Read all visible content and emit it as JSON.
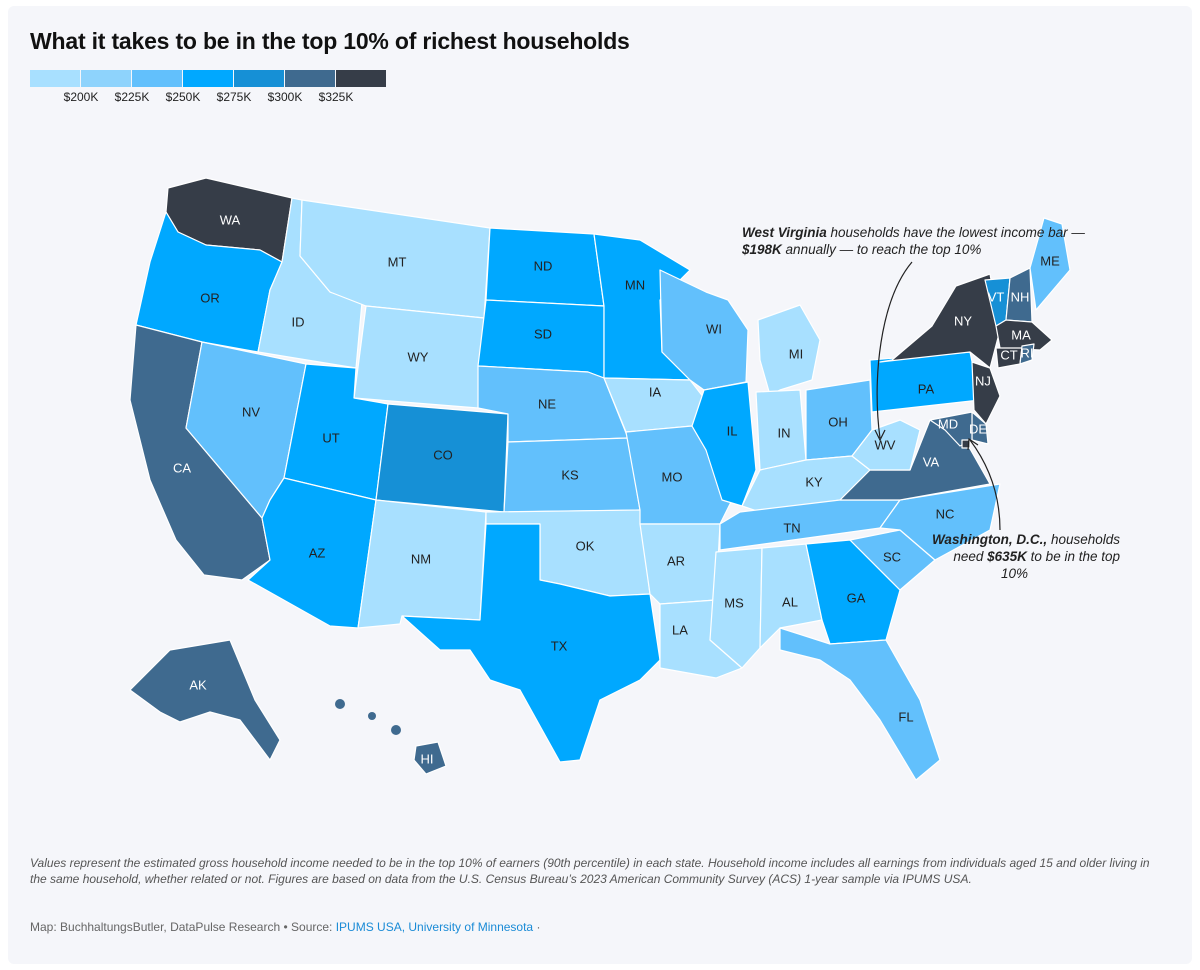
{
  "title": "What it takes to be in the top 10% of richest households",
  "legend": {
    "colors": [
      "#a8e0ff",
      "#8ed3fc",
      "#62c0fc",
      "#00a8ff",
      "#1690d6",
      "#3f6a8f",
      "#363d48"
    ],
    "labels": [
      "$200K",
      "$225K",
      "$250K",
      "$275K",
      "$300K",
      "$325K"
    ]
  },
  "states": [
    {
      "abbr": "WA",
      "color": "#363d48",
      "light": true
    },
    {
      "abbr": "OR",
      "color": "#00a8ff",
      "light": false
    },
    {
      "abbr": "CA",
      "color": "#3f6a8f",
      "light": true
    },
    {
      "abbr": "ID",
      "color": "#a8e0ff",
      "light": false
    },
    {
      "abbr": "NV",
      "color": "#62c0fc",
      "light": false
    },
    {
      "abbr": "MT",
      "color": "#a8e0ff",
      "light": false
    },
    {
      "abbr": "WY",
      "color": "#a8e0ff",
      "light": false
    },
    {
      "abbr": "UT",
      "color": "#00a8ff",
      "light": false
    },
    {
      "abbr": "AZ",
      "color": "#00a8ff",
      "light": false
    },
    {
      "abbr": "CO",
      "color": "#1690d6",
      "light": false
    },
    {
      "abbr": "NM",
      "color": "#a8e0ff",
      "light": false
    },
    {
      "abbr": "ND",
      "color": "#00a8ff",
      "light": false
    },
    {
      "abbr": "SD",
      "color": "#00a8ff",
      "light": false
    },
    {
      "abbr": "NE",
      "color": "#62c0fc",
      "light": false
    },
    {
      "abbr": "KS",
      "color": "#62c0fc",
      "light": false
    },
    {
      "abbr": "OK",
      "color": "#a8e0ff",
      "light": false
    },
    {
      "abbr": "TX",
      "color": "#00a8ff",
      "light": false
    },
    {
      "abbr": "MN",
      "color": "#00a8ff",
      "light": false
    },
    {
      "abbr": "IA",
      "color": "#a8e0ff",
      "light": false
    },
    {
      "abbr": "MO",
      "color": "#62c0fc",
      "light": false
    },
    {
      "abbr": "AR",
      "color": "#a8e0ff",
      "light": false
    },
    {
      "abbr": "LA",
      "color": "#a8e0ff",
      "light": false
    },
    {
      "abbr": "WI",
      "color": "#62c0fc",
      "light": false
    },
    {
      "abbr": "IL",
      "color": "#00a8ff",
      "light": false
    },
    {
      "abbr": "MI",
      "color": "#a8e0ff",
      "light": false
    },
    {
      "abbr": "IN",
      "color": "#a8e0ff",
      "light": false
    },
    {
      "abbr": "OH",
      "color": "#62c0fc",
      "light": false
    },
    {
      "abbr": "KY",
      "color": "#a8e0ff",
      "light": false
    },
    {
      "abbr": "TN",
      "color": "#62c0fc",
      "light": false
    },
    {
      "abbr": "MS",
      "color": "#a8e0ff",
      "light": false
    },
    {
      "abbr": "AL",
      "color": "#a8e0ff",
      "light": false
    },
    {
      "abbr": "GA",
      "color": "#00a8ff",
      "light": false
    },
    {
      "abbr": "FL",
      "color": "#62c0fc",
      "light": false
    },
    {
      "abbr": "SC",
      "color": "#62c0fc",
      "light": false
    },
    {
      "abbr": "NC",
      "color": "#62c0fc",
      "light": false
    },
    {
      "abbr": "VA",
      "color": "#3f6a8f",
      "light": true
    },
    {
      "abbr": "WV",
      "color": "#a8e0ff",
      "light": false
    },
    {
      "abbr": "PA",
      "color": "#00a8ff",
      "light": false
    },
    {
      "abbr": "NY",
      "color": "#363d48",
      "light": true
    },
    {
      "abbr": "VT",
      "color": "#1690d6",
      "light": true
    },
    {
      "abbr": "NH",
      "color": "#3f6a8f",
      "light": true
    },
    {
      "abbr": "ME",
      "color": "#62c0fc",
      "light": false
    },
    {
      "abbr": "MA",
      "color": "#363d48",
      "light": true
    },
    {
      "abbr": "CT",
      "color": "#363d48",
      "light": true
    },
    {
      "abbr": "RI",
      "color": "#3f6a8f",
      "light": true
    },
    {
      "abbr": "NJ",
      "color": "#363d48",
      "light": true
    },
    {
      "abbr": "DE",
      "color": "#3f6a8f",
      "light": true
    },
    {
      "abbr": "MD",
      "color": "#3f6a8f",
      "light": true
    },
    {
      "abbr": "DC",
      "color": "#363d48",
      "light": true
    },
    {
      "abbr": "AK",
      "color": "#3f6a8f",
      "light": true
    },
    {
      "abbr": "HI",
      "color": "#3f6a8f",
      "light": true
    }
  ],
  "annotations": {
    "wv": {
      "bold1": "West Virginia",
      "text1": " households have the lowest income bar —",
      "bold2": "$198K",
      "text2": " annually — to reach the top 10%"
    },
    "dc": {
      "bold1": "Washington, D.C.,",
      "text1": " households",
      "text2": "need ",
      "bold2": "$635K",
      "text3": " to be in the top",
      "text4": "10%"
    }
  },
  "note": "Values represent the estimated gross household income needed to be in the top 10% of earners (90th percentile) in each state. Household income includes all earnings from individuals aged 15 and older living in the same household, whether related or not. Figures are based on data from the U.S. Census Bureau’s 2023 American Community Survey (ACS) 1-year sample via IPUMS USA.",
  "credit": {
    "text": "Map: BuchhaltungsButler, DataPulse Research • Source: ",
    "link": "IPUMS USA, University of Minnesota",
    "tail": " ·"
  }
}
